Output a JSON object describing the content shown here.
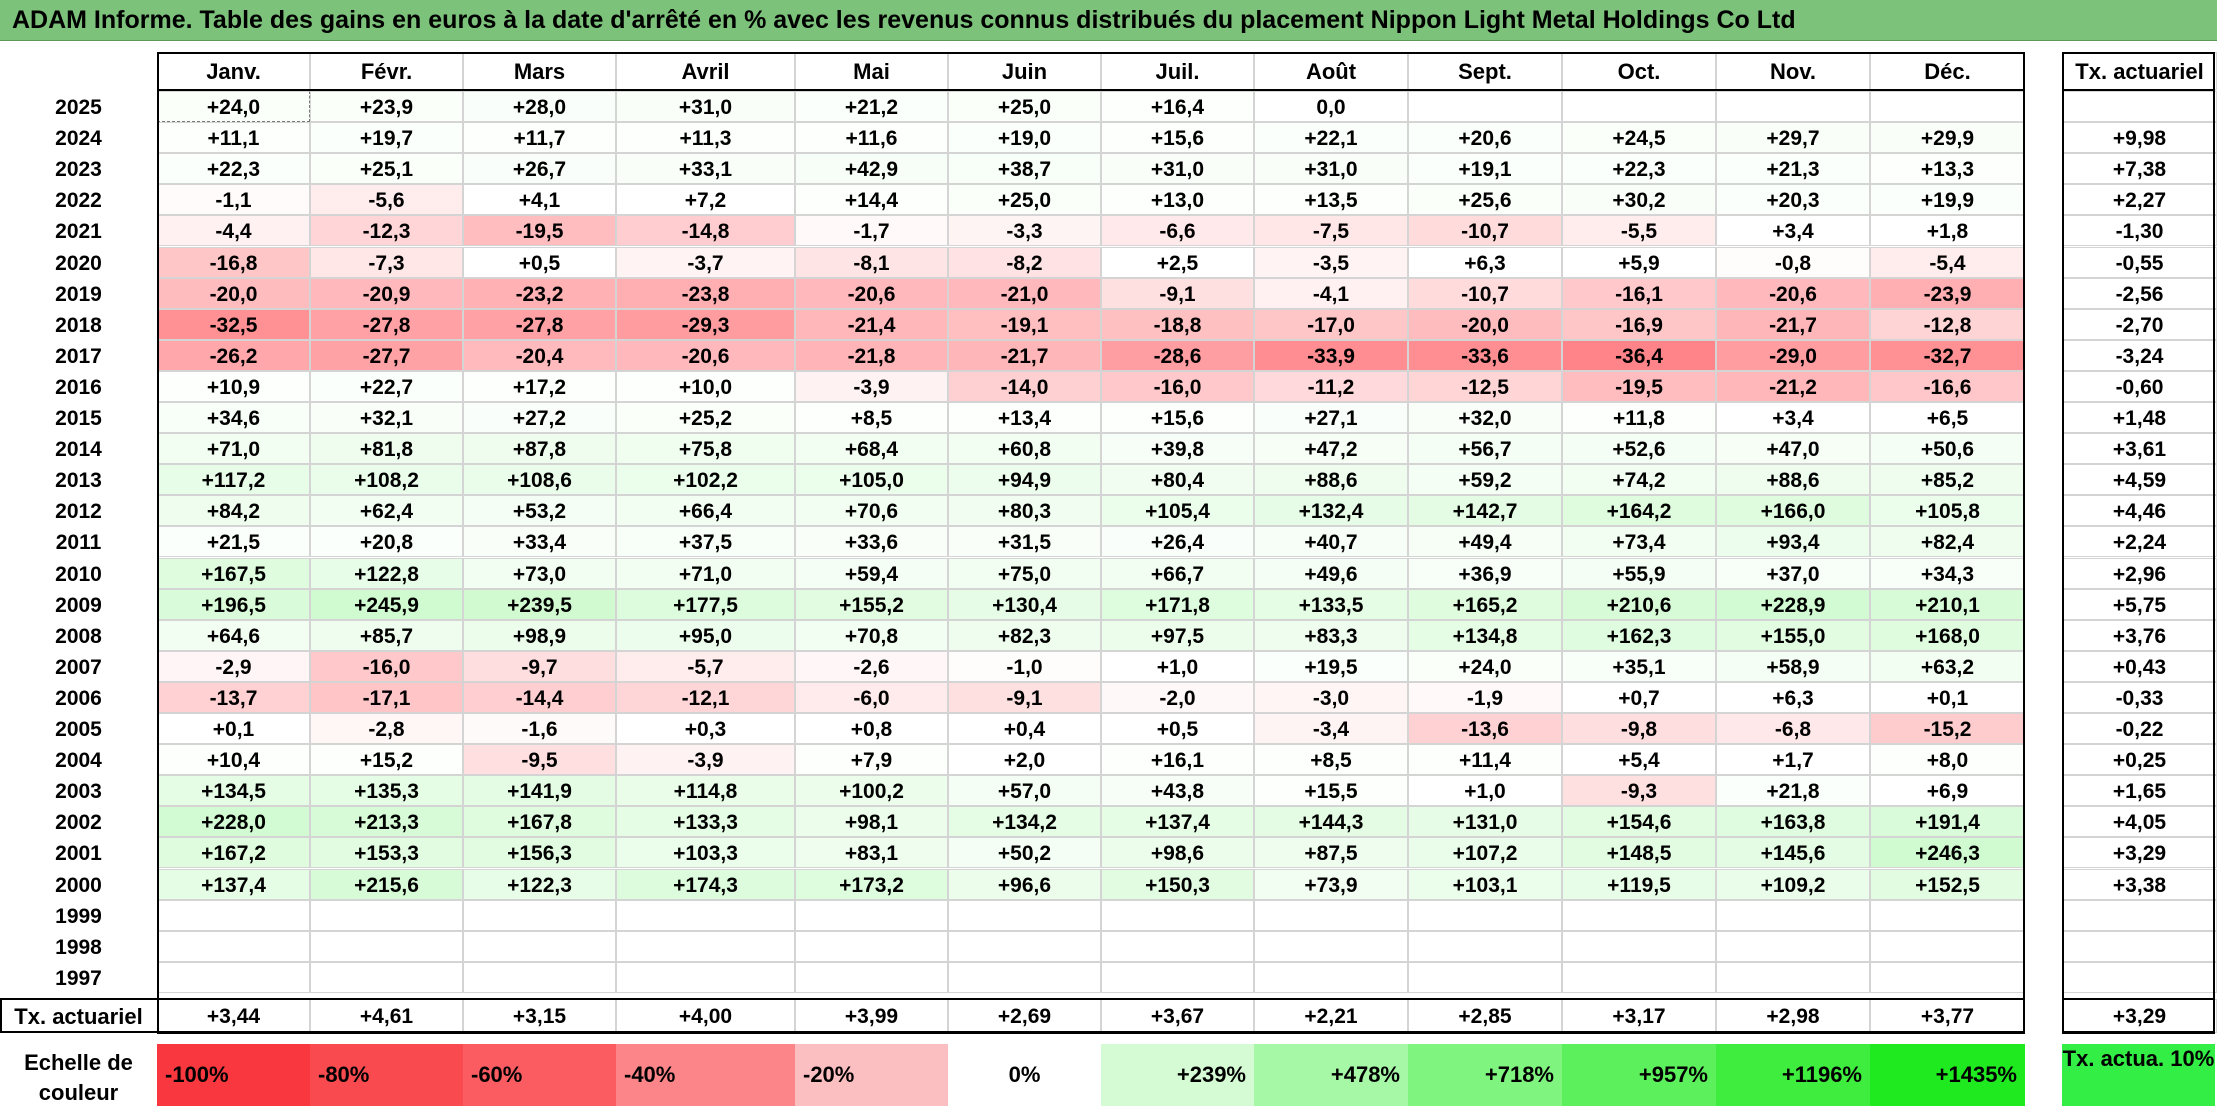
{
  "title": "ADAM Informe. Table des gains en euros à la date d'arrêté en % avec les revenus connus distribués du placement Nippon Light Metal Holdings Co Ltd",
  "chart_data": {
    "type": "table",
    "columns": [
      "Janv.",
      "Févr.",
      "Mars",
      "Avril",
      "Mai",
      "Juin",
      "Juil.",
      "Août",
      "Sept.",
      "Oct.",
      "Nov.",
      "Déc."
    ],
    "total_column_label": "Tx. actuariel",
    "rows": [
      {
        "year": "2025",
        "values": [
          "+24,0",
          "+23,9",
          "+28,0",
          "+31,0",
          "+21,2",
          "+25,0",
          "+16,4",
          "0,0",
          "",
          "",
          "",
          ""
        ],
        "rate": ""
      },
      {
        "year": "2024",
        "values": [
          "+11,1",
          "+19,7",
          "+11,7",
          "+11,3",
          "+11,6",
          "+19,0",
          "+15,6",
          "+22,1",
          "+20,6",
          "+24,5",
          "+29,7",
          "+29,9"
        ],
        "rate": "+9,98"
      },
      {
        "year": "2023",
        "values": [
          "+22,3",
          "+25,1",
          "+26,7",
          "+33,1",
          "+42,9",
          "+38,7",
          "+31,0",
          "+31,0",
          "+19,1",
          "+22,3",
          "+21,3",
          "+13,3"
        ],
        "rate": "+7,38"
      },
      {
        "year": "2022",
        "values": [
          "-1,1",
          "-5,6",
          "+4,1",
          "+7,2",
          "+14,4",
          "+25,0",
          "+13,0",
          "+13,5",
          "+25,6",
          "+30,2",
          "+20,3",
          "+19,9"
        ],
        "rate": "+2,27"
      },
      {
        "year": "2021",
        "values": [
          "-4,4",
          "-12,3",
          "-19,5",
          "-14,8",
          "-1,7",
          "-3,3",
          "-6,6",
          "-7,5",
          "-10,7",
          "-5,5",
          "+3,4",
          "+1,8"
        ],
        "rate": "-1,30"
      },
      {
        "year": "2020",
        "values": [
          "-16,8",
          "-7,3",
          "+0,5",
          "-3,7",
          "-8,1",
          "-8,2",
          "+2,5",
          "-3,5",
          "+6,3",
          "+5,9",
          "-0,8",
          "-5,4"
        ],
        "rate": "-0,55"
      },
      {
        "year": "2019",
        "values": [
          "-20,0",
          "-20,9",
          "-23,2",
          "-23,8",
          "-20,6",
          "-21,0",
          "-9,1",
          "-4,1",
          "-10,7",
          "-16,1",
          "-20,6",
          "-23,9"
        ],
        "rate": "-2,56"
      },
      {
        "year": "2018",
        "values": [
          "-32,5",
          "-27,8",
          "-27,8",
          "-29,3",
          "-21,4",
          "-19,1",
          "-18,8",
          "-17,0",
          "-20,0",
          "-16,9",
          "-21,7",
          "-12,8"
        ],
        "rate": "-2,70"
      },
      {
        "year": "2017",
        "values": [
          "-26,2",
          "-27,7",
          "-20,4",
          "-20,6",
          "-21,8",
          "-21,7",
          "-28,6",
          "-33,9",
          "-33,6",
          "-36,4",
          "-29,0",
          "-32,7"
        ],
        "rate": "-3,24"
      },
      {
        "year": "2016",
        "values": [
          "+10,9",
          "+22,7",
          "+17,2",
          "+10,0",
          "-3,9",
          "-14,0",
          "-16,0",
          "-11,2",
          "-12,5",
          "-19,5",
          "-21,2",
          "-16,6"
        ],
        "rate": "-0,60"
      },
      {
        "year": "2015",
        "values": [
          "+34,6",
          "+32,1",
          "+27,2",
          "+25,2",
          "+8,5",
          "+13,4",
          "+15,6",
          "+27,1",
          "+32,0",
          "+11,8",
          "+3,4",
          "+6,5"
        ],
        "rate": "+1,48"
      },
      {
        "year": "2014",
        "values": [
          "+71,0",
          "+81,8",
          "+87,8",
          "+75,8",
          "+68,4",
          "+60,8",
          "+39,8",
          "+47,2",
          "+56,7",
          "+52,6",
          "+47,0",
          "+50,6"
        ],
        "rate": "+3,61"
      },
      {
        "year": "2013",
        "values": [
          "+117,2",
          "+108,2",
          "+108,6",
          "+102,2",
          "+105,0",
          "+94,9",
          "+80,4",
          "+88,6",
          "+59,2",
          "+74,2",
          "+88,6",
          "+85,2"
        ],
        "rate": "+4,59"
      },
      {
        "year": "2012",
        "values": [
          "+84,2",
          "+62,4",
          "+53,2",
          "+66,4",
          "+70,6",
          "+80,3",
          "+105,4",
          "+132,4",
          "+142,7",
          "+164,2",
          "+166,0",
          "+105,8"
        ],
        "rate": "+4,46"
      },
      {
        "year": "2011",
        "values": [
          "+21,5",
          "+20,8",
          "+33,4",
          "+37,5",
          "+33,6",
          "+31,5",
          "+26,4",
          "+40,7",
          "+49,4",
          "+73,4",
          "+93,4",
          "+82,4"
        ],
        "rate": "+2,24"
      },
      {
        "year": "2010",
        "values": [
          "+167,5",
          "+122,8",
          "+73,0",
          "+71,0",
          "+59,4",
          "+75,0",
          "+66,7",
          "+49,6",
          "+36,9",
          "+55,9",
          "+37,0",
          "+34,3"
        ],
        "rate": "+2,96"
      },
      {
        "year": "2009",
        "values": [
          "+196,5",
          "+245,9",
          "+239,5",
          "+177,5",
          "+155,2",
          "+130,4",
          "+171,8",
          "+133,5",
          "+165,2",
          "+210,6",
          "+228,9",
          "+210,1"
        ],
        "rate": "+5,75"
      },
      {
        "year": "2008",
        "values": [
          "+64,6",
          "+85,7",
          "+98,9",
          "+95,0",
          "+70,8",
          "+82,3",
          "+97,5",
          "+83,3",
          "+134,8",
          "+162,3",
          "+155,0",
          "+168,0"
        ],
        "rate": "+3,76"
      },
      {
        "year": "2007",
        "values": [
          "-2,9",
          "-16,0",
          "-9,7",
          "-5,7",
          "-2,6",
          "-1,0",
          "+1,0",
          "+19,5",
          "+24,0",
          "+35,1",
          "+58,9",
          "+63,2"
        ],
        "rate": "+0,43"
      },
      {
        "year": "2006",
        "values": [
          "-13,7",
          "-17,1",
          "-14,4",
          "-12,1",
          "-6,0",
          "-9,1",
          "-2,0",
          "-3,0",
          "-1,9",
          "+0,7",
          "+6,3",
          "+0,1"
        ],
        "rate": "-0,33"
      },
      {
        "year": "2005",
        "values": [
          "+0,1",
          "-2,8",
          "-1,6",
          "+0,3",
          "+0,8",
          "+0,4",
          "+0,5",
          "-3,4",
          "-13,6",
          "-9,8",
          "-6,8",
          "-15,2"
        ],
        "rate": "-0,22"
      },
      {
        "year": "2004",
        "values": [
          "+10,4",
          "+15,2",
          "-9,5",
          "-3,9",
          "+7,9",
          "+2,0",
          "+16,1",
          "+8,5",
          "+11,4",
          "+5,4",
          "+1,7",
          "+8,0"
        ],
        "rate": "+0,25"
      },
      {
        "year": "2003",
        "values": [
          "+134,5",
          "+135,3",
          "+141,9",
          "+114,8",
          "+100,2",
          "+57,0",
          "+43,8",
          "+15,5",
          "+1,0",
          "-9,3",
          "+21,8",
          "+6,9"
        ],
        "rate": "+1,65"
      },
      {
        "year": "2002",
        "values": [
          "+228,0",
          "+213,3",
          "+167,8",
          "+133,3",
          "+98,1",
          "+134,2",
          "+137,4",
          "+144,3",
          "+131,0",
          "+154,6",
          "+163,8",
          "+191,4"
        ],
        "rate": "+4,05"
      },
      {
        "year": "2001",
        "values": [
          "+167,2",
          "+153,3",
          "+156,3",
          "+103,3",
          "+83,1",
          "+50,2",
          "+98,6",
          "+87,5",
          "+107,2",
          "+148,5",
          "+145,6",
          "+246,3"
        ],
        "rate": "+3,29"
      },
      {
        "year": "2000",
        "values": [
          "+137,4",
          "+215,6",
          "+122,3",
          "+174,3",
          "+173,2",
          "+96,6",
          "+150,3",
          "+73,9",
          "+103,1",
          "+119,5",
          "+109,2",
          "+152,5"
        ],
        "rate": "+3,38"
      },
      {
        "year": "1999",
        "values": [
          "",
          "",
          "",
          "",
          "",
          "",
          "",
          "",
          "",
          "",
          "",
          ""
        ],
        "rate": ""
      },
      {
        "year": "1998",
        "values": [
          "",
          "",
          "",
          "",
          "",
          "",
          "",
          "",
          "",
          "",
          "",
          ""
        ],
        "rate": ""
      },
      {
        "year": "1997",
        "values": [
          "",
          "",
          "",
          "",
          "",
          "",
          "",
          "",
          "",
          "",
          "",
          ""
        ],
        "rate": ""
      }
    ],
    "footer": {
      "label": "Tx. actuariel",
      "values": [
        "+3,44",
        "+4,61",
        "+3,15",
        "+4,00",
        "+3,99",
        "+2,69",
        "+3,67",
        "+2,21",
        "+2,85",
        "+3,17",
        "+2,98",
        "+3,77"
      ],
      "rate": "+3,29"
    },
    "color_scale": {
      "label": "Echelle de couleur",
      "stops": [
        {
          "label": "-100%",
          "color": "#f8383e"
        },
        {
          "label": "-80%",
          "color": "#f94a4f"
        },
        {
          "label": "-60%",
          "color": "#fa5c61"
        },
        {
          "label": "-40%",
          "color": "#fb8589"
        },
        {
          "label": "-20%",
          "color": "#fcbfc1"
        },
        {
          "label": "0%",
          "color": "#ffffff"
        },
        {
          "label": "+239%",
          "color": "#d4fbd4"
        },
        {
          "label": "+478%",
          "color": "#a6f7a6"
        },
        {
          "label": "+718%",
          "color": "#7ff47f"
        },
        {
          "label": "+957%",
          "color": "#5cf05c"
        },
        {
          "label": "+1196%",
          "color": "#3eed3e"
        },
        {
          "label": "+1435%",
          "color": "#1fea1f"
        }
      ],
      "rate_label": "Tx. actua. 10%",
      "rate_color": "#33ee44"
    }
  }
}
